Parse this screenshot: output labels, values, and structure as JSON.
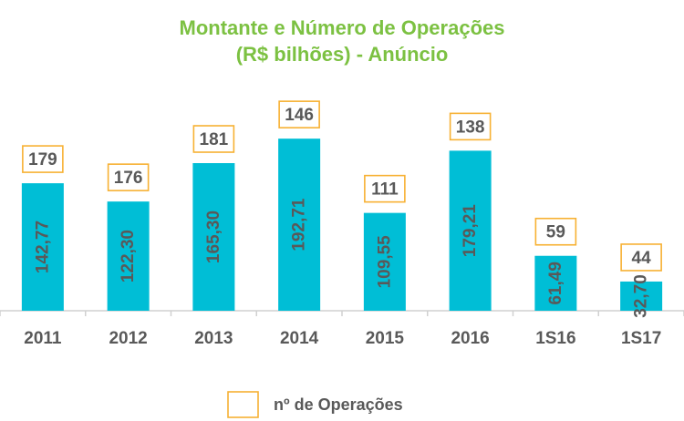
{
  "colors": {
    "title": "#7cc142",
    "bar": "#00bed6",
    "count_box": "#f7b133",
    "text": "#595959",
    "axis": "#d0d0d0"
  },
  "chart_data": {
    "type": "bar",
    "title": [
      "Montante e Número de Operações",
      "(R$ bilhões) - Anúncio"
    ],
    "categories": [
      "2011",
      "2012",
      "2013",
      "2014",
      "2015",
      "2016",
      "1S16",
      "1S17"
    ],
    "series": [
      {
        "values": [
          142.77,
          122.3,
          165.3,
          192.71,
          109.55,
          179.21,
          61.49,
          32.7
        ],
        "labels": [
          "142,77",
          "122,30",
          "165,30",
          "192,71",
          "109,55",
          "179,21",
          "61,49",
          "32,70"
        ]
      },
      {
        "name": "nº de Operações",
        "values": [
          179,
          176,
          181,
          146,
          111,
          138,
          59,
          44
        ],
        "labels": [
          "179",
          "176",
          "181",
          "146",
          "111",
          "138",
          "59",
          "44"
        ]
      }
    ],
    "ylim": [
      0,
      200
    ],
    "grid": false,
    "legend": "bottom"
  }
}
